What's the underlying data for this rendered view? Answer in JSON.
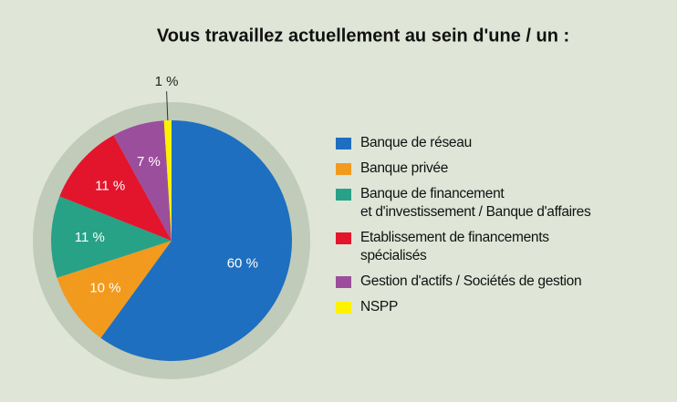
{
  "chart_data": {
    "type": "pie",
    "title": "Vous travaillez actuellement au sein d'une / un :",
    "categories": [
      "Banque de réseau",
      "Banque privée",
      "Banque de financement\net d'investissement / Banque d'affaires",
      "Etablissement de financements\nspécialisés",
      "Gestion d'actifs / Sociétés de gestion",
      "NSPP"
    ],
    "values": [
      60,
      10,
      11,
      11,
      7,
      1
    ],
    "value_labels": [
      "60 %",
      "10 %",
      "11 %",
      "11 %",
      "7 %",
      "1 %"
    ],
    "colors": [
      "#1f6fc0",
      "#f29a1e",
      "#27a287",
      "#e2152d",
      "#9a4e9c",
      "#fff200"
    ]
  }
}
